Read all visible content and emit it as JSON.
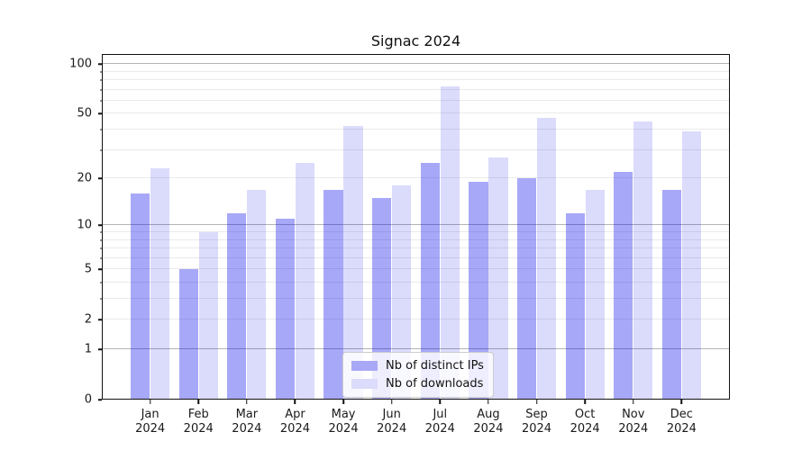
{
  "title": "Signac 2024",
  "chart_data": {
    "type": "bar",
    "title": "Signac 2024",
    "categories": [
      "Jan",
      "Feb",
      "Mar",
      "Apr",
      "May",
      "Jun",
      "Jul",
      "Aug",
      "Sep",
      "Oct",
      "Nov",
      "Dec"
    ],
    "category_year": "2024",
    "series": [
      {
        "name": "Nb of distinct IPs",
        "color_hex": "#a8a8f6",
        "color_rgba": "rgba(0,0,235,0.34)",
        "values": [
          16,
          5,
          12,
          11,
          17,
          15,
          25,
          19,
          20,
          12,
          22,
          17
        ]
      },
      {
        "name": "Nb of downloads",
        "color_hex": "#dbdbfb",
        "color_rgba": "rgba(0,0,235,0.14)",
        "values": [
          23,
          9,
          17,
          25,
          42,
          18,
          73,
          27,
          47,
          17,
          45,
          39
        ]
      }
    ],
    "yscale": "log1p",
    "ylim": [
      0,
      115
    ],
    "ytick_labels": [
      "100",
      "50",
      "20",
      "10",
      "5",
      "2",
      "1",
      "0"
    ],
    "ytick_values": [
      100,
      50,
      20,
      10,
      5,
      2,
      1,
      0
    ],
    "major_gridlines": [
      1,
      10,
      100
    ],
    "minor_gridlines": [
      2,
      3,
      4,
      5,
      6,
      7,
      8,
      9,
      20,
      30,
      40,
      50,
      60,
      70,
      80,
      90
    ],
    "grid": true,
    "legend_position": "lower center"
  },
  "colors": {
    "axis": "#111111",
    "text": "#1a1a1a",
    "grid_major": "#b4b4b4",
    "grid_minor": "#eaeaea",
    "legend_border": "#cccccc",
    "legend_background": "rgba(255,255,255,0.8)"
  }
}
